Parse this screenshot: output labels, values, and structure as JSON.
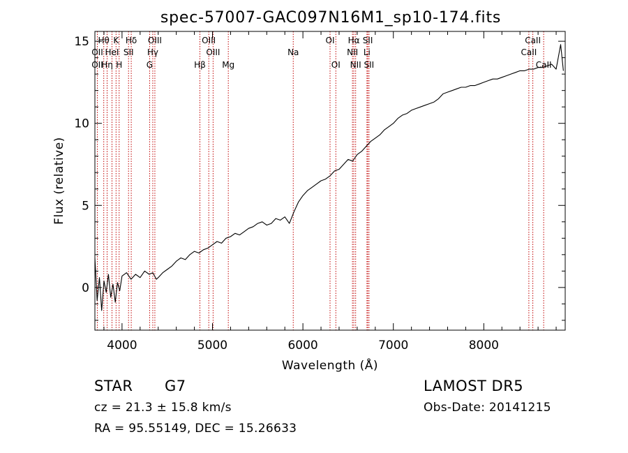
{
  "chart_data": {
    "type": "line",
    "title": "spec-57007-GAC097N16M1_sp10-174.fits",
    "xlabel": "Wavelength (Å)",
    "ylabel": "Flux (relative)",
    "xlim": [
      3700,
      8900
    ],
    "ylim": [
      -2.6,
      15.6
    ],
    "xticks": [
      4000,
      5000,
      6000,
      7000,
      8000
    ],
    "yticks": [
      0,
      5,
      10,
      15
    ],
    "grid": false,
    "line_color": "#000000",
    "marker_color": "#c00000",
    "series": [
      {
        "x": [
          3700,
          3725,
          3750,
          3775,
          3800,
          3825,
          3850,
          3875,
          3900,
          3925,
          3950,
          3975,
          4000,
          4050,
          4100,
          4150,
          4200,
          4250,
          4300,
          4340,
          4380,
          4400,
          4450,
          4500,
          4550,
          4600,
          4650,
          4700,
          4750,
          4800,
          4850,
          4900,
          4950,
          5000,
          5050,
          5100,
          5150,
          5200,
          5250,
          5300,
          5350,
          5400,
          5450,
          5500,
          5550,
          5600,
          5650,
          5700,
          5750,
          5800,
          5850,
          5900,
          5950,
          6000,
          6050,
          6100,
          6150,
          6200,
          6250,
          6300,
          6350,
          6400,
          6450,
          6500,
          6550,
          6600,
          6650,
          6700,
          6750,
          6800,
          6850,
          6900,
          6950,
          7000,
          7050,
          7100,
          7150,
          7200,
          7250,
          7300,
          7350,
          7400,
          7450,
          7500,
          7550,
          7600,
          7650,
          7700,
          7750,
          7800,
          7850,
          7900,
          7950,
          8000,
          8050,
          8100,
          8150,
          8200,
          8250,
          8300,
          8350,
          8400,
          8450,
          8500,
          8550,
          8600,
          8650,
          8700,
          8750,
          8800,
          8850,
          8880
        ],
        "y": [
          1.8,
          -0.8,
          0.6,
          -1.4,
          0.4,
          -0.3,
          0.8,
          -0.6,
          0.2,
          -0.9,
          0.3,
          -0.2,
          0.7,
          0.9,
          0.5,
          0.8,
          0.6,
          1.0,
          0.8,
          0.9,
          0.5,
          0.6,
          0.9,
          1.1,
          1.3,
          1.6,
          1.8,
          1.7,
          2.0,
          2.2,
          2.1,
          2.3,
          2.4,
          2.6,
          2.8,
          2.7,
          3.0,
          3.1,
          3.3,
          3.2,
          3.4,
          3.6,
          3.7,
          3.9,
          4.0,
          3.8,
          3.9,
          4.2,
          4.1,
          4.3,
          3.9,
          4.6,
          5.2,
          5.6,
          5.9,
          6.1,
          6.3,
          6.5,
          6.6,
          6.8,
          7.1,
          7.2,
          7.5,
          7.8,
          7.7,
          8.1,
          8.3,
          8.6,
          8.9,
          9.1,
          9.3,
          9.6,
          9.8,
          10.0,
          10.3,
          10.5,
          10.6,
          10.8,
          10.9,
          11.0,
          11.1,
          11.2,
          11.3,
          11.5,
          11.8,
          11.9,
          12.0,
          12.1,
          12.2,
          12.2,
          12.3,
          12.3,
          12.4,
          12.5,
          12.6,
          12.7,
          12.7,
          12.8,
          12.9,
          13.0,
          13.1,
          13.2,
          13.2,
          13.3,
          13.3,
          13.4,
          13.4,
          13.5,
          13.6,
          13.3,
          14.8,
          13.2
        ]
      }
    ],
    "lines": [
      {
        "name": "Hθ",
        "x": 3798,
        "row": 0
      },
      {
        "name": "K",
        "x": 3934,
        "row": 0
      },
      {
        "name": "Hδ",
        "x": 4102,
        "row": 0
      },
      {
        "name": "OIII",
        "x": 4363,
        "row": 0
      },
      {
        "name": "OIII",
        "x": 4959,
        "row": 0
      },
      {
        "name": "OI",
        "x": 6300,
        "row": 0
      },
      {
        "name": "Hα",
        "x": 6563,
        "row": 0
      },
      {
        "name": "SII",
        "x": 6717,
        "row": 0
      },
      {
        "name": "CaII",
        "x": 8542,
        "row": 0
      },
      {
        "name": "OII",
        "x": 3727,
        "row": 1
      },
      {
        "name": "HeI",
        "x": 3889,
        "row": 1
      },
      {
        "name": "SII",
        "x": 4072,
        "row": 1
      },
      {
        "name": "Hγ",
        "x": 4340,
        "row": 1
      },
      {
        "name": "OIII",
        "x": 5007,
        "row": 1
      },
      {
        "name": "Na",
        "x": 5893,
        "row": 1
      },
      {
        "name": "NII",
        "x": 6548,
        "row": 1
      },
      {
        "name": "Li",
        "x": 6708,
        "row": 1
      },
      {
        "name": "CaII",
        "x": 8498,
        "row": 1
      },
      {
        "name": "OII",
        "x": 3727,
        "row": 2
      },
      {
        "name": "Hη",
        "x": 3835,
        "row": 2
      },
      {
        "name": "H",
        "x": 3968,
        "row": 2
      },
      {
        "name": "G",
        "x": 4305,
        "row": 2
      },
      {
        "name": "Hβ",
        "x": 4861,
        "row": 2
      },
      {
        "name": "Mg",
        "x": 5175,
        "row": 2
      },
      {
        "name": "OI",
        "x": 6364,
        "row": 2
      },
      {
        "name": "NII",
        "x": 6583,
        "row": 2
      },
      {
        "name": "SII",
        "x": 6731,
        "row": 2
      },
      {
        "name": "CaII",
        "x": 8662,
        "row": 2
      }
    ]
  },
  "info": {
    "object_class": "STAR",
    "subclass": "G7",
    "survey": "LAMOST  DR5",
    "velocity": "cz = 21.3 ± 15.8 km/s",
    "obs_date": "Obs-Date: 20141215",
    "coords": "RA =  95.55149, DEC =  15.26633"
  }
}
